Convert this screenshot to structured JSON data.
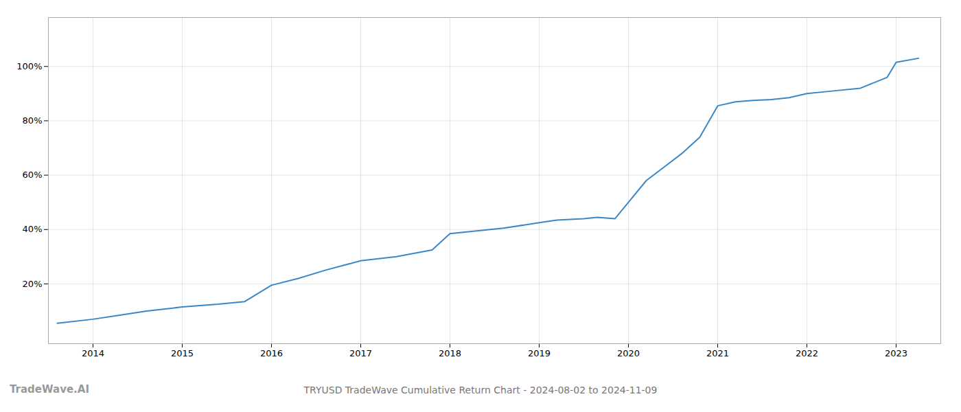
{
  "chart_data": {
    "type": "line",
    "title": "TRYUSD TradeWave Cumulative Return Chart - 2024-08-02 to 2024-11-09",
    "annotations": [
      "TradeWave.AI"
    ],
    "x": [
      2013.6,
      2014.0,
      2014.3,
      2014.6,
      2015.0,
      2015.4,
      2015.7,
      2016.0,
      2016.3,
      2016.6,
      2017.0,
      2017.4,
      2017.8,
      2018.0,
      2018.3,
      2018.6,
      2019.0,
      2019.2,
      2019.5,
      2019.65,
      2019.85,
      2020.0,
      2020.2,
      2020.4,
      2020.6,
      2020.8,
      2021.0,
      2021.2,
      2021.4,
      2021.6,
      2021.8,
      2022.0,
      2022.3,
      2022.6,
      2022.9,
      2023.0,
      2023.25
    ],
    "values": [
      5.5,
      7.0,
      8.5,
      10.0,
      11.5,
      12.5,
      13.5,
      19.5,
      22.0,
      25.0,
      28.5,
      30.0,
      32.5,
      38.5,
      39.5,
      40.5,
      42.5,
      43.5,
      44.0,
      44.5,
      44.0,
      50.0,
      58.0,
      63.0,
      68.0,
      74.0,
      85.5,
      87.0,
      87.5,
      87.8,
      88.5,
      90.0,
      91.0,
      92.0,
      96.0,
      101.5,
      103.0
    ],
    "color": "#3a87c8",
    "xlim": [
      2013.5,
      2023.5
    ],
    "xticks": [
      2014,
      2015,
      2016,
      2017,
      2018,
      2019,
      2020,
      2021,
      2022,
      2023
    ],
    "ylim": [
      -2,
      118
    ],
    "yticks": [
      {
        "value": 20,
        "label": "20%"
      },
      {
        "value": 40,
        "label": "40%"
      },
      {
        "value": 60,
        "label": "60%"
      },
      {
        "value": 80,
        "label": "80%"
      },
      {
        "value": 100,
        "label": "100%"
      }
    ],
    "grid": true
  }
}
